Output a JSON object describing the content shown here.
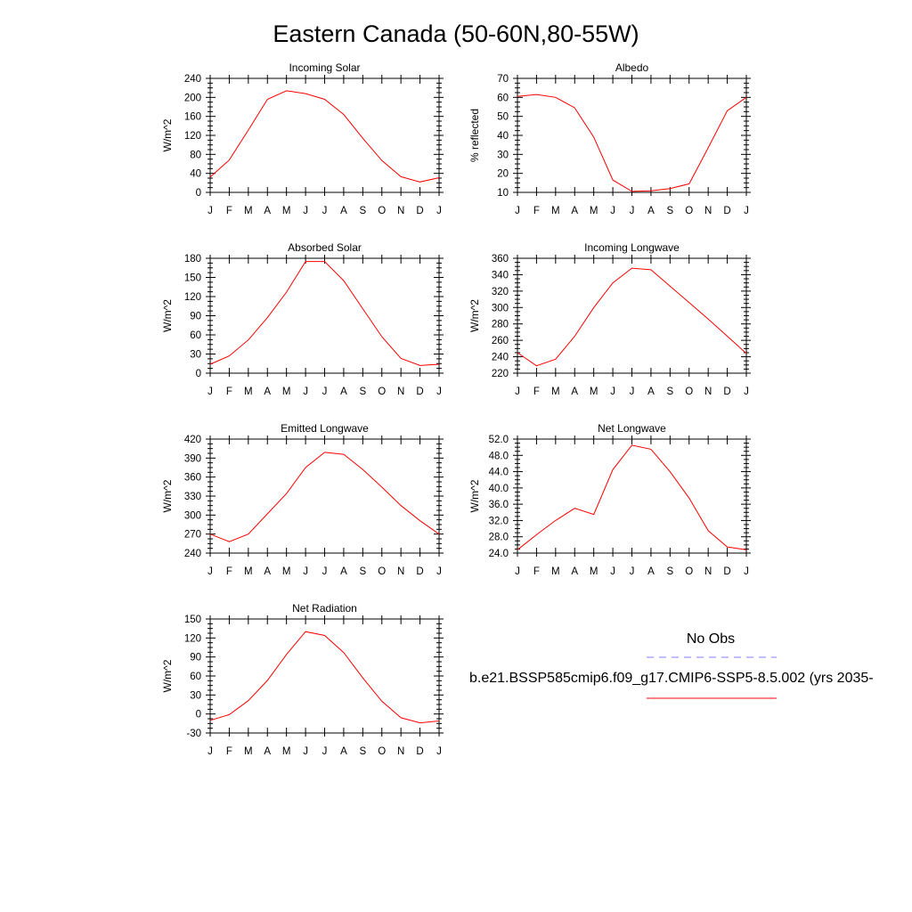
{
  "title": "Eastern Canada (50-60N,80-55W)",
  "months": [
    "J",
    "F",
    "M",
    "A",
    "M",
    "J",
    "J",
    "A",
    "S",
    "O",
    "N",
    "D",
    "J"
  ],
  "chart_data": [
    {
      "type": "line",
      "title": "Incoming Solar",
      "xlabel": "",
      "ylabel": "W/m^2",
      "ylim": [
        0,
        240
      ],
      "yticks": [
        "0",
        "40",
        "80",
        "120",
        "160",
        "200",
        "240"
      ],
      "x": [
        "J",
        "F",
        "M",
        "A",
        "M",
        "J",
        "J",
        "A",
        "S",
        "O",
        "N",
        "D",
        "J"
      ],
      "series": [
        {
          "values": [
            32,
            68,
            131,
            196,
            214,
            208,
            196,
            164,
            114,
            67,
            33,
            22,
            31
          ]
        }
      ]
    },
    {
      "type": "line",
      "title": "Albedo",
      "xlabel": "",
      "ylabel": "% reflected",
      "ylim": [
        10,
        70
      ],
      "yticks": [
        "10",
        "20",
        "30",
        "40",
        "50",
        "60",
        "70"
      ],
      "x": [
        "J",
        "F",
        "M",
        "A",
        "M",
        "J",
        "J",
        "A",
        "S",
        "O",
        "N",
        "D",
        "J"
      ],
      "series": [
        {
          "values": [
            60.5,
            61.5,
            60,
            54.5,
            39,
            16.5,
            10.5,
            10.8,
            12,
            14.5,
            33.5,
            53,
            60
          ]
        }
      ]
    },
    {
      "type": "line",
      "title": "Absorbed Solar",
      "xlabel": "",
      "ylabel": "W/m^2",
      "ylim": [
        0,
        180
      ],
      "yticks": [
        "0",
        "30",
        "60",
        "90",
        "120",
        "150",
        "180"
      ],
      "x": [
        "J",
        "F",
        "M",
        "A",
        "M",
        "J",
        "J",
        "A",
        "S",
        "O",
        "N",
        "D",
        "J"
      ],
      "series": [
        {
          "values": [
            14,
            27,
            52,
            87,
            127,
            175,
            175,
            145,
            101,
            57,
            23,
            12,
            14
          ]
        }
      ]
    },
    {
      "type": "line",
      "title": "Incoming Longwave",
      "xlabel": "",
      "ylabel": "W/m^2",
      "ylim": [
        220,
        360
      ],
      "yticks": [
        "220",
        "240",
        "260",
        "280",
        "300",
        "320",
        "340",
        "360"
      ],
      "x": [
        "J",
        "F",
        "M",
        "A",
        "M",
        "J",
        "J",
        "A",
        "S",
        "O",
        "N",
        "D",
        "J"
      ],
      "series": [
        {
          "values": [
            245,
            229,
            237,
            265,
            300,
            330,
            348,
            346,
            326,
            306,
            286,
            265,
            244
          ]
        }
      ]
    },
    {
      "type": "line",
      "title": "Emitted Longwave",
      "xlabel": "",
      "ylabel": "W/m^2",
      "ylim": [
        240,
        420
      ],
      "yticks": [
        "240",
        "270",
        "300",
        "330",
        "360",
        "390",
        "420"
      ],
      "x": [
        "J",
        "F",
        "M",
        "A",
        "M",
        "J",
        "J",
        "A",
        "S",
        "O",
        "N",
        "D",
        "J"
      ],
      "series": [
        {
          "values": [
            270,
            258,
            270,
            302,
            334,
            375,
            399,
            396,
            372,
            344,
            315,
            291,
            270
          ]
        }
      ]
    },
    {
      "type": "line",
      "title": "Net Longwave",
      "xlabel": "",
      "ylabel": "W/m^2",
      "ylim": [
        24,
        52
      ],
      "yticks": [
        "24.0",
        "28.0",
        "32.0",
        "36.0",
        "40.0",
        "44.0",
        "48.0",
        "52.0"
      ],
      "x": [
        "J",
        "F",
        "M",
        "A",
        "M",
        "J",
        "J",
        "A",
        "S",
        "O",
        "N",
        "D",
        "J"
      ],
      "series": [
        {
          "values": [
            24.8,
            28.5,
            32,
            35,
            33.5,
            44.5,
            50.5,
            49.5,
            44,
            37.5,
            29.5,
            25.5,
            24.8
          ]
        }
      ]
    },
    {
      "type": "line",
      "title": "Net Radiation",
      "xlabel": "",
      "ylabel": "W/m^2",
      "ylim": [
        -30,
        150
      ],
      "yticks": [
        "-30",
        "0",
        "30",
        "60",
        "90",
        "120",
        "150"
      ],
      "x": [
        "J",
        "F",
        "M",
        "A",
        "M",
        "J",
        "J",
        "A",
        "S",
        "O",
        "N",
        "D",
        "J"
      ],
      "series": [
        {
          "values": [
            -10,
            -1,
            21,
            53,
            94,
            130,
            124,
            97,
            57,
            20,
            -6,
            -14,
            -11
          ]
        }
      ]
    }
  ],
  "legend": {
    "obs_label": "No Obs",
    "obs_color": "#8080ff",
    "model_label": "b.e21.BSSP585cmip6.f09_g17.CMIP6-SSP5-8.5.002 (yrs 2035-",
    "model_color": "#ff0000"
  },
  "colors": {
    "line": "#ff0000",
    "axis": "#000000"
  }
}
